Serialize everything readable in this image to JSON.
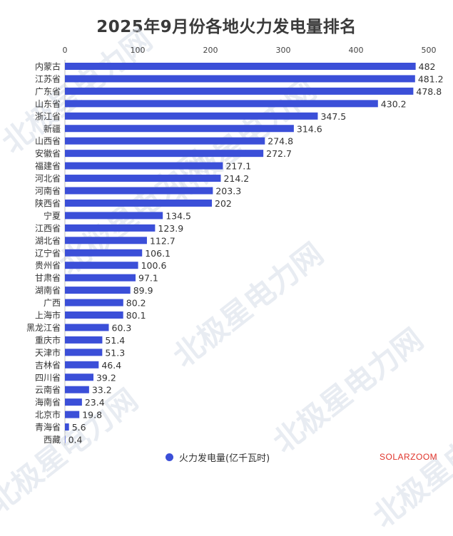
{
  "chart_data": {
    "type": "bar",
    "orientation": "horizontal",
    "title": "2025年9月份各地火力发电量排名",
    "categories": [
      "内蒙古",
      "江苏省",
      "广东省",
      "山东省",
      "浙江省",
      "新疆",
      "山西省",
      "安徽省",
      "福建省",
      "河北省",
      "河南省",
      "陕西省",
      "宁夏",
      "江西省",
      "湖北省",
      "辽宁省",
      "贵州省",
      "甘肃省",
      "湖南省",
      "广西",
      "上海市",
      "黑龙江省",
      "重庆市",
      "天津市",
      "吉林省",
      "四川省",
      "云南省",
      "海南省",
      "北京市",
      "青海省",
      "西藏"
    ],
    "series": [
      {
        "name": "火力发电量(亿千瓦时)",
        "values": [
          482,
          481.2,
          478.8,
          430.2,
          347.5,
          314.6,
          274.8,
          272.7,
          217.1,
          214.2,
          203.3,
          202,
          134.5,
          123.9,
          112.7,
          106.1,
          100.6,
          97.1,
          89.9,
          80.2,
          80.1,
          60.3,
          51.4,
          51.3,
          46.4,
          39.2,
          33.2,
          23.4,
          19.8,
          5.6,
          0.4
        ]
      }
    ],
    "value_labels": [
      "482",
      "481.2",
      "478.8",
      "430.2",
      "347.5",
      "314.6",
      "274.8",
      "272.7",
      "217.1",
      "214.2",
      "203.3",
      "202",
      "134.5",
      "123.9",
      "112.7",
      "106.1",
      "100.6",
      "97.1",
      "89.9",
      "80.2",
      "80.1",
      "60.3",
      "51.4",
      "51.3",
      "46.4",
      "39.2",
      "33.2",
      "23.4",
      "19.8",
      "5.6",
      "0.4"
    ],
    "xlim": [
      0,
      500
    ],
    "xticks": [
      "0",
      "100",
      "200",
      "300",
      "400",
      "500"
    ],
    "axis_position": "top",
    "grid": false,
    "legend_position": "bottom",
    "bar_color": "#3b4fd8"
  },
  "watermark_text": "北极星电力网",
  "credit": "SOLARZOOM"
}
